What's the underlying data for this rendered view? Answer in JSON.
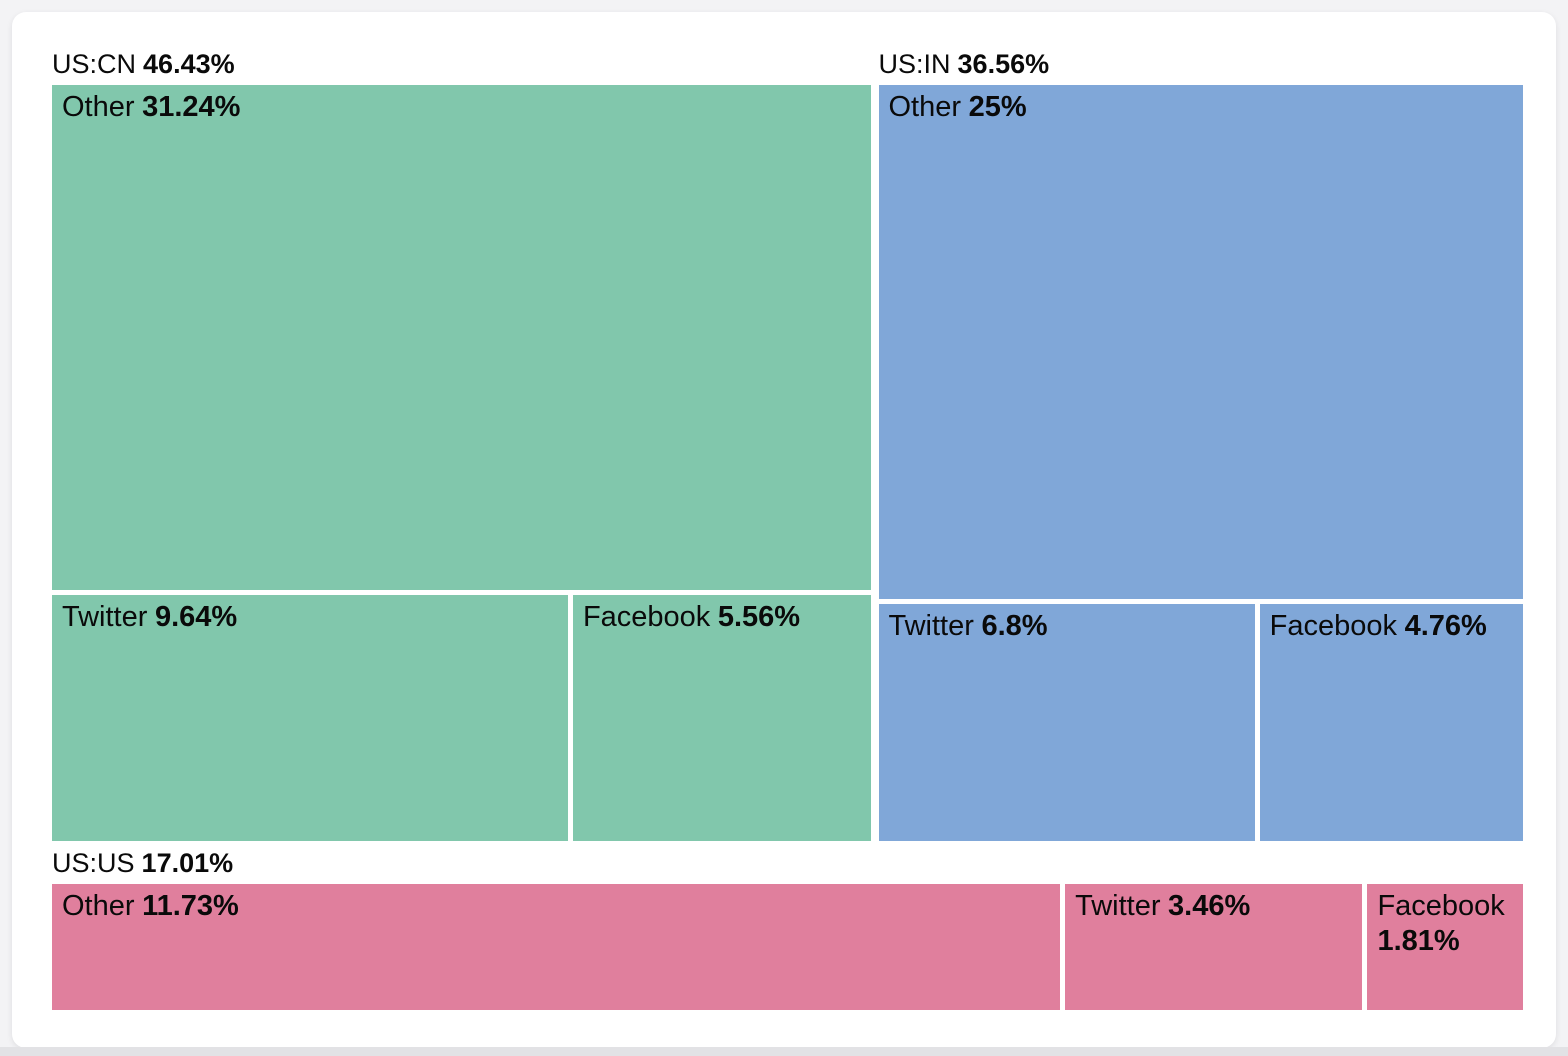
{
  "chart_data": {
    "type": "treemap",
    "title": "",
    "legend": "none",
    "layout_hint": "three groups: US:CN left column, US:IN right column, US:US bottom strip; each group split into Other / Twitter / Facebook cells sized by percentage",
    "groups": [
      {
        "label": "US:CN",
        "pct_label": "46.43%",
        "value": 46.43,
        "color": "#81c7ac",
        "children": [
          {
            "label": "Other",
            "pct_label": "31.24%",
            "value": 31.24
          },
          {
            "label": "Twitter",
            "pct_label": "9.64%",
            "value": 9.64
          },
          {
            "label": "Facebook",
            "pct_label": "5.56%",
            "value": 5.56
          }
        ]
      },
      {
        "label": "US:IN",
        "pct_label": "36.56%",
        "value": 36.56,
        "color": "#80a7d8",
        "children": [
          {
            "label": "Other",
            "pct_label": "25%",
            "value": 25
          },
          {
            "label": "Twitter",
            "pct_label": "6.8%",
            "value": 6.8
          },
          {
            "label": "Facebook",
            "pct_label": "4.76%",
            "value": 4.76
          }
        ]
      },
      {
        "label": "US:US",
        "pct_label": "17.01%",
        "value": 17.01,
        "color": "#e07f9d",
        "children": [
          {
            "label": "Other",
            "pct_label": "11.73%",
            "value": 11.73
          },
          {
            "label": "Twitter",
            "pct_label": "3.46%",
            "value": 3.46
          },
          {
            "label": "Facebook",
            "pct_label": "1.81%",
            "value": 1.81
          }
        ]
      }
    ]
  }
}
